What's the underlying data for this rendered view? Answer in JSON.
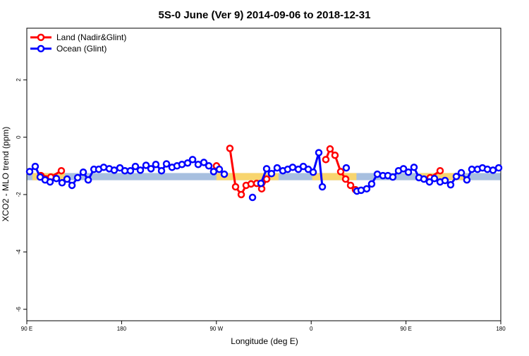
{
  "chart_data": {
    "type": "line",
    "title": "5S-0 June (Ver 9)   2014-09-06 to 2018-12-31",
    "x_label": "Longitude (deg E)",
    "y_label": "XCO2 - MLO trend (ppm)",
    "xlim": [
      90,
      540
    ],
    "ylim": [
      -6.4,
      3.8
    ],
    "xticks": [
      {
        "value": 90,
        "label": "90 E"
      },
      180,
      {
        "value": 270,
        "label": "90 W"
      },
      {
        "value": 360,
        "label": "0"
      },
      {
        "value": 450,
        "label": "90 E"
      },
      {
        "value": 540,
        "label": "180"
      }
    ],
    "yticks": [
      -6,
      -4,
      -2,
      0,
      2
    ],
    "legend": "top-left",
    "band_ylim": [
      -1.5,
      -1.25
    ],
    "bands": [
      {
        "color": "#a7bfdf",
        "x": [
          90,
          540
        ]
      },
      {
        "color": "#f8d56e",
        "x": [
          95.4,
          126.2
        ]
      },
      {
        "color": "#f8d56e",
        "x": [
          270,
          329
        ]
      },
      {
        "color": "#f8d56e",
        "x": [
          361,
          403
        ]
      },
      {
        "color": "#f8d56e",
        "x": [
          463,
          506
        ]
      }
    ],
    "series": [
      {
        "name": "Land (Nadir&Glint)",
        "color": "#ff0000",
        "x": [
          103.4,
          112.8,
          122.8,
          null,
          270.1,
          null,
          282.8,
          288.2,
          293.6,
          298.2,
          302.9,
          308.3,
          313.0,
          317.7,
          null,
          373.9,
          377.9,
          382.6,
          388.0,
          392.7,
          397.4,
          402.0,
          null,
          473.0,
          482.4
        ],
        "values": [
          -1.34,
          -1.39,
          -1.17,
          null,
          -1.0,
          null,
          -0.39,
          -1.73,
          -2.0,
          -1.68,
          -1.63,
          -1.61,
          -1.8,
          -1.46,
          null,
          -0.78,
          -0.41,
          -0.63,
          -1.2,
          -1.46,
          -1.68,
          -1.83,
          null,
          -1.41,
          -1.17
        ]
      },
      {
        "name": "Ocean (Glint)",
        "color": "#0000ff",
        "x": [
          92.7,
          98.0,
          102.7,
          107.4,
          112.1,
          118.1,
          123.5,
          128.2,
          132.9,
          138.3,
          143.6,
          148.3,
          153.7,
          158.3,
          163.0,
          168.3,
          173.0,
          178.4,
          183.1,
          188.4,
          193.1,
          197.8,
          203.2,
          207.9,
          212.5,
          217.9,
          222.6,
          227.9,
          232.6,
          237.3,
          242.7,
          247.4,
          252.7,
          258.1,
          262.8,
          267.4,
          272.8,
          277.5,
          null,
          304.3,
          null,
          312.3,
          317.7,
          322.3,
          327.7,
          333.1,
          337.7,
          342.4,
          347.8,
          352.5,
          357.2,
          361.9,
          367.2,
          370.6,
          null,
          393.3,
          null,
          403.4,
          407.4,
          412.7,
          417.4,
          422.8,
          428.1,
          432.8,
          437.5,
          442.9,
          447.6,
          452.3,
          457.6,
          462.3,
          467.0,
          472.3,
          477.0,
          482.4,
          487.1,
          492.4,
          497.8,
          502.5,
          507.8,
          512.5,
          517.9,
          522.6,
          527.3,
          532.6,
          538.0
        ],
        "values": [
          -1.2,
          -1.02,
          -1.39,
          -1.49,
          -1.56,
          -1.44,
          -1.59,
          -1.46,
          -1.68,
          -1.41,
          -1.22,
          -1.49,
          -1.12,
          -1.12,
          -1.05,
          -1.1,
          -1.15,
          -1.07,
          -1.17,
          -1.17,
          -1.02,
          -1.15,
          -0.98,
          -1.1,
          -0.95,
          -1.17,
          -0.93,
          -1.05,
          -1.0,
          -0.95,
          -0.9,
          -0.78,
          -0.95,
          -0.88,
          -1.0,
          -1.2,
          -1.12,
          -1.29,
          null,
          -2.1,
          null,
          -1.61,
          -1.1,
          -1.27,
          -1.07,
          -1.17,
          -1.12,
          -1.05,
          -1.12,
          -1.02,
          -1.12,
          -1.22,
          -0.54,
          -1.73,
          null,
          -1.07,
          null,
          -1.88,
          -1.85,
          -1.8,
          -1.63,
          -1.29,
          -1.34,
          -1.34,
          -1.39,
          -1.17,
          -1.1,
          -1.22,
          -1.05,
          -1.41,
          -1.46,
          -1.56,
          -1.44,
          -1.56,
          -1.51,
          -1.66,
          -1.37,
          -1.24,
          -1.49,
          -1.12,
          -1.12,
          -1.07,
          -1.12,
          -1.15,
          -1.07
        ]
      }
    ]
  }
}
